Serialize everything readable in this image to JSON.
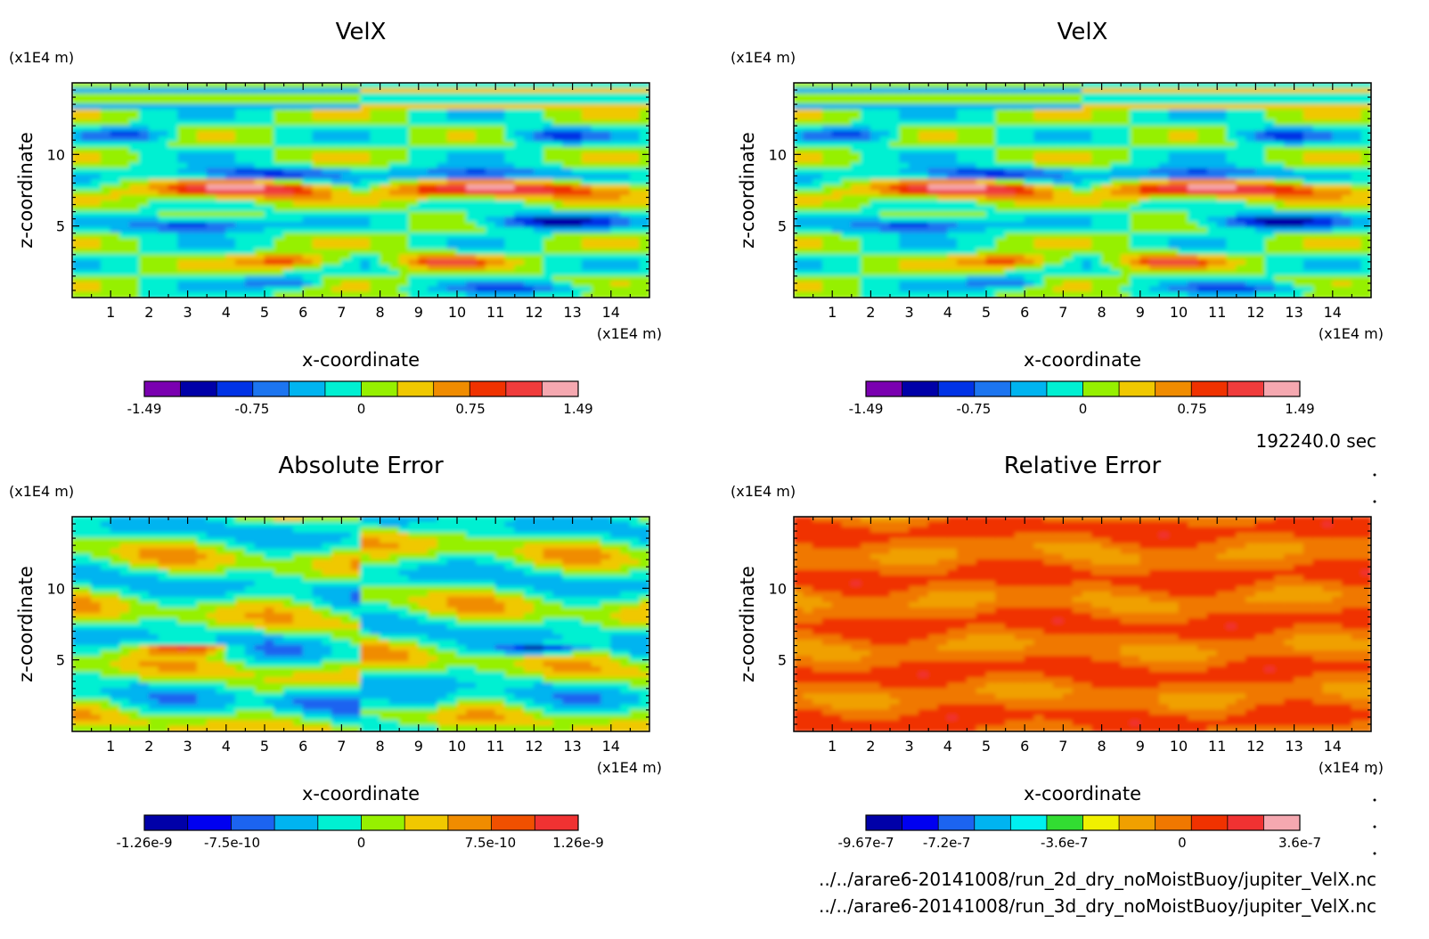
{
  "figure": {
    "time_label": "192240.0 sec",
    "file_paths": [
      "../../arare6-20141008/run_2d_dry_noMoistBuoy/jupiter_VelX.nc",
      "../../arare6-20141008/run_3d_dry_noMoistBuoy/jupiter_VelX.nc"
    ],
    "background": "#ffffff"
  },
  "chart_data": [
    {
      "type": "heatmap",
      "title": "VelX",
      "xlabel": "x-coordinate",
      "ylabel": "z-coordinate",
      "x_unit": "(x1E4 m)",
      "y_unit": "(x1E4 m)",
      "xlim": [
        0,
        15
      ],
      "ylim": [
        0,
        15
      ],
      "x_ticks": [
        1,
        2,
        3,
        4,
        5,
        6,
        7,
        8,
        9,
        10,
        11,
        12,
        13,
        14
      ],
      "y_ticks": [
        5,
        10
      ],
      "field": "velx",
      "colorbar": {
        "colors": [
          "#7a00b0",
          "#0000a8",
          "#0033e6",
          "#1c75f0",
          "#00b4f0",
          "#00f0d2",
          "#96f000",
          "#f0c800",
          "#f08c00",
          "#f03200",
          "#f03c3c",
          "#f5a8b0"
        ],
        "tick_labels": [
          "-1.49",
          "-0.75",
          "0",
          "0.75",
          "1.49"
        ],
        "tick_values": [
          -1.49,
          -0.75,
          0,
          0.75,
          1.49
        ],
        "range": [
          -1.49,
          1.49
        ]
      }
    },
    {
      "type": "heatmap",
      "title": "VelX",
      "xlabel": "x-coordinate",
      "ylabel": "z-coordinate",
      "x_unit": "(x1E4 m)",
      "y_unit": "(x1E4 m)",
      "xlim": [
        0,
        15
      ],
      "ylim": [
        0,
        15
      ],
      "x_ticks": [
        1,
        2,
        3,
        4,
        5,
        6,
        7,
        8,
        9,
        10,
        11,
        12,
        13,
        14
      ],
      "y_ticks": [
        5,
        10
      ],
      "field": "velx",
      "colorbar": {
        "colors": [
          "#7a00b0",
          "#0000a8",
          "#0033e6",
          "#1c75f0",
          "#00b4f0",
          "#00f0d2",
          "#96f000",
          "#f0c800",
          "#f08c00",
          "#f03200",
          "#f03c3c",
          "#f5a8b0"
        ],
        "tick_labels": [
          "-1.49",
          "-0.75",
          "0",
          "0.75",
          "1.49"
        ],
        "tick_values": [
          -1.49,
          -0.75,
          0,
          0.75,
          1.49
        ],
        "range": [
          -1.49,
          1.49
        ]
      }
    },
    {
      "type": "heatmap",
      "title": "Absolute Error",
      "xlabel": "x-coordinate",
      "ylabel": "z-coordinate",
      "x_unit": "(x1E4 m)",
      "y_unit": "(x1E4 m)",
      "xlim": [
        0,
        15
      ],
      "ylim": [
        0,
        15
      ],
      "x_ticks": [
        1,
        2,
        3,
        4,
        5,
        6,
        7,
        8,
        9,
        10,
        11,
        12,
        13,
        14
      ],
      "y_ticks": [
        5,
        10
      ],
      "field": "abserr",
      "colorbar": {
        "colors": [
          "#0000a8",
          "#0000f0",
          "#1c64f0",
          "#00b4f0",
          "#00f0d2",
          "#96f000",
          "#f0c800",
          "#f08c00",
          "#f05000",
          "#f03232"
        ],
        "tick_labels": [
          "-1.26e-9",
          "-7.5e-10",
          "0",
          "7.5e-10",
          "1.26e-9"
        ],
        "tick_values": [
          -1.26e-09,
          -7.5e-10,
          0,
          7.5e-10,
          1.26e-09
        ],
        "range": [
          -1.26e-09,
          1.26e-09
        ]
      }
    },
    {
      "type": "heatmap",
      "title": "Relative Error",
      "xlabel": "x-coordinate",
      "ylabel": "z-coordinate",
      "x_unit": "(x1E4 m)",
      "y_unit": "(x1E4 m)",
      "xlim": [
        0,
        15
      ],
      "ylim": [
        0,
        15
      ],
      "x_ticks": [
        1,
        2,
        3,
        4,
        5,
        6,
        7,
        8,
        9,
        10,
        11,
        12,
        13,
        14
      ],
      "y_ticks": [
        5,
        10
      ],
      "field": "relerr",
      "colorbar": {
        "colors": [
          "#0000a8",
          "#0000f0",
          "#1c64f0",
          "#00b4f0",
          "#00f0f0",
          "#32dc32",
          "#f0f000",
          "#f0a000",
          "#f07800",
          "#f03200",
          "#f03232",
          "#f5a8b0"
        ],
        "tick_labels": [
          "-9.67e-7",
          "-7.2e-7",
          "-3.6e-7",
          "0",
          "3.6e-7"
        ],
        "tick_values": [
          -9.67e-07,
          -7.2e-07,
          -3.6e-07,
          0,
          3.6e-07
        ],
        "range": [
          -9.67e-07,
          3.6e-07
        ]
      }
    }
  ]
}
